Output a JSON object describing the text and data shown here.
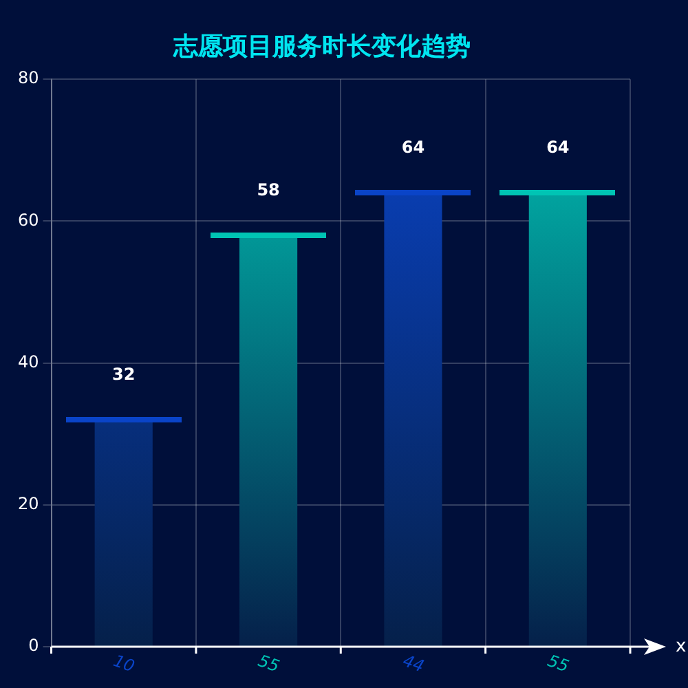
{
  "chart_data": {
    "type": "bar",
    "title": "志愿项目服务时长变化趋势",
    "xlabel": "x",
    "categories": [
      "10",
      "55",
      "44",
      "55"
    ],
    "values": [
      32,
      58,
      64,
      64
    ],
    "colors": [
      "#0a44c8",
      "#00c4b4",
      "#0a44c8",
      "#00c4b4"
    ],
    "ylim": [
      0,
      80
    ],
    "yticks": [
      0,
      20,
      40,
      60,
      80
    ],
    "grid": true,
    "data_labels": true
  }
}
